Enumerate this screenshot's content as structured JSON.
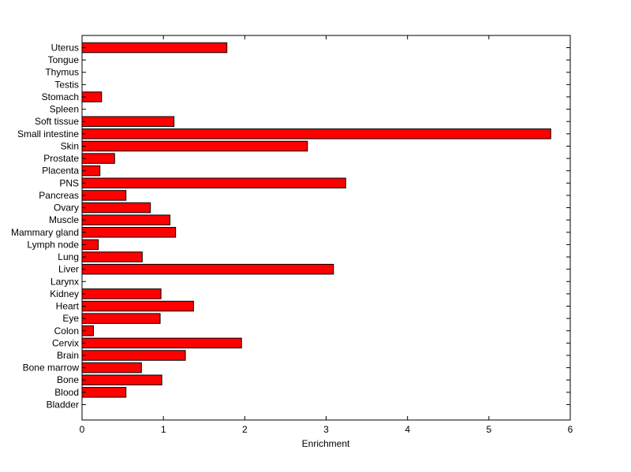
{
  "chart_data": {
    "type": "bar",
    "orientation": "horizontal",
    "categories": [
      "Uterus",
      "Tongue",
      "Thymus",
      "Testis",
      "Stomach",
      "Spleen",
      "Soft tissue",
      "Small intestine",
      "Skin",
      "Prostate",
      "Placenta",
      "PNS",
      "Pancreas",
      "Ovary",
      "Muscle",
      "Mammary gland",
      "Lymph node",
      "Lung",
      "Liver",
      "Larynx",
      "Kidney",
      "Heart",
      "Eye",
      "Colon",
      "Cervix",
      "Brain",
      "Bone marrow",
      "Bone",
      "Blood",
      "Bladder"
    ],
    "values": [
      1.78,
      0,
      0,
      0,
      0.24,
      0,
      1.13,
      5.76,
      2.77,
      0.4,
      0.22,
      3.24,
      0.54,
      0.84,
      1.08,
      1.15,
      0.2,
      0.74,
      3.09,
      0,
      0.97,
      1.37,
      0.96,
      0.14,
      1.96,
      1.27,
      0.73,
      0.98,
      0.54,
      0
    ],
    "xlabel": "Enrichment",
    "ylabel": "",
    "title": "",
    "xlim": [
      0,
      6
    ],
    "xticks": [
      "0",
      "1",
      "2",
      "3",
      "4",
      "5",
      "6"
    ],
    "grid": false,
    "colors": {
      "bar_fill": "#ff0000",
      "bar_stroke": "#000000",
      "axis": "#000000"
    }
  }
}
